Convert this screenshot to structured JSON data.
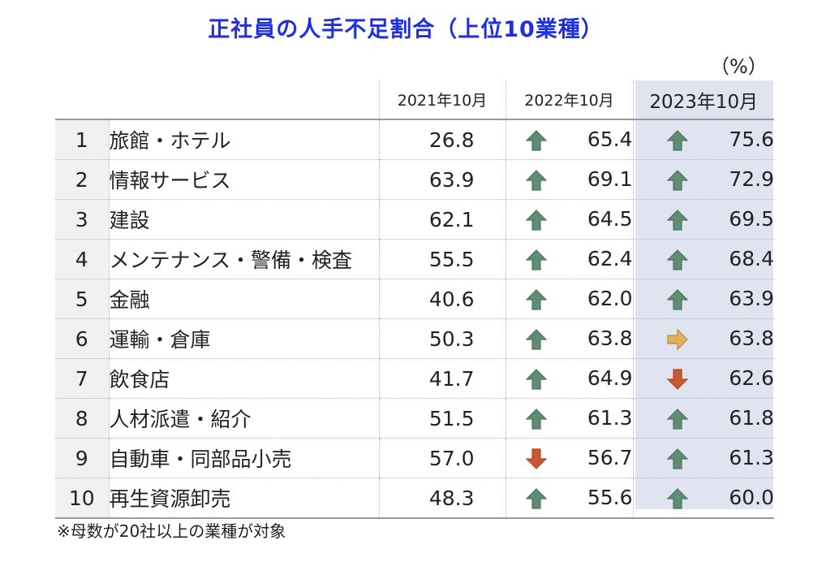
{
  "title": "正社員の人手不足割合（上位10業種）",
  "unit": "（%）",
  "note": "※母数が20社以上の業種が対象",
  "colors": {
    "up": "#5f8c73",
    "flat": "#e0b35a",
    "down": "#c75a32",
    "title": "#1f2ee0",
    "highlight": "#dfe4f0"
  },
  "chart_data": {
    "type": "table",
    "title": "正社員の人手不足割合（上位10業種）",
    "unit": "（%）",
    "columns": [
      "2021年10月",
      "2022年10月",
      "2023年10月"
    ],
    "rows": [
      {
        "rank": "1",
        "industry": "旅館・ホテル",
        "v2021": "26.8",
        "v2022": "65.4",
        "t2022": "up",
        "v2023": "75.6",
        "t2023": "up"
      },
      {
        "rank": "2",
        "industry": "情報サービス",
        "v2021": "63.9",
        "v2022": "69.1",
        "t2022": "up",
        "v2023": "72.9",
        "t2023": "up"
      },
      {
        "rank": "3",
        "industry": "建設",
        "v2021": "62.1",
        "v2022": "64.5",
        "t2022": "up",
        "v2023": "69.5",
        "t2023": "up"
      },
      {
        "rank": "4",
        "industry": "メンテナンス・警備・検査",
        "v2021": "55.5",
        "v2022": "62.4",
        "t2022": "up",
        "v2023": "68.4",
        "t2023": "up"
      },
      {
        "rank": "5",
        "industry": "金融",
        "v2021": "40.6",
        "v2022": "62.0",
        "t2022": "up",
        "v2023": "63.9",
        "t2023": "up"
      },
      {
        "rank": "6",
        "industry": "運輸・倉庫",
        "v2021": "50.3",
        "v2022": "63.8",
        "t2022": "up",
        "v2023": "63.8",
        "t2023": "flat"
      },
      {
        "rank": "7",
        "industry": "飲食店",
        "v2021": "41.7",
        "v2022": "64.9",
        "t2022": "up",
        "v2023": "62.6",
        "t2023": "down"
      },
      {
        "rank": "8",
        "industry": "人材派遣・紹介",
        "v2021": "51.5",
        "v2022": "61.3",
        "t2022": "up",
        "v2023": "61.8",
        "t2023": "up"
      },
      {
        "rank": "9",
        "industry": "自動車・同部品小売",
        "v2021": "57.0",
        "v2022": "56.7",
        "t2022": "down",
        "v2023": "61.3",
        "t2023": "up"
      },
      {
        "rank": "10",
        "industry": "再生資源卸売",
        "v2021": "48.3",
        "v2022": "55.6",
        "t2022": "up",
        "v2023": "60.0",
        "t2023": "up"
      }
    ]
  }
}
